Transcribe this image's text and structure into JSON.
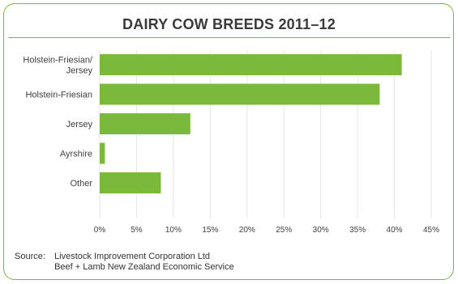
{
  "chart_data": {
    "type": "bar",
    "orientation": "horizontal",
    "title": "DAIRY COW BREEDS 2011–12",
    "categories": [
      [
        "Holstein-Friesian/",
        "Jersey"
      ],
      [
        "Holstein-Friesian"
      ],
      [
        "Jersey"
      ],
      [
        "Ayrshire"
      ],
      [
        "Other"
      ]
    ],
    "values": [
      41,
      38,
      12.3,
      0.7,
      8.3
    ],
    "xlim": [
      0,
      45
    ],
    "x_ticks": [
      "0%",
      "5%",
      "10%",
      "15%",
      "20%",
      "25%",
      "30%",
      "35%",
      "40%",
      "45%"
    ],
    "grid": "vertical",
    "bar_color": "#7bb93a",
    "grid_color": "#e6e6e6",
    "accent_color": "#7bb93a"
  },
  "source": {
    "label": "Source:",
    "lines": [
      "Livestock Improvement Corporation Ltd",
      "Beef + Lamb New Zealand Economic Service"
    ]
  }
}
